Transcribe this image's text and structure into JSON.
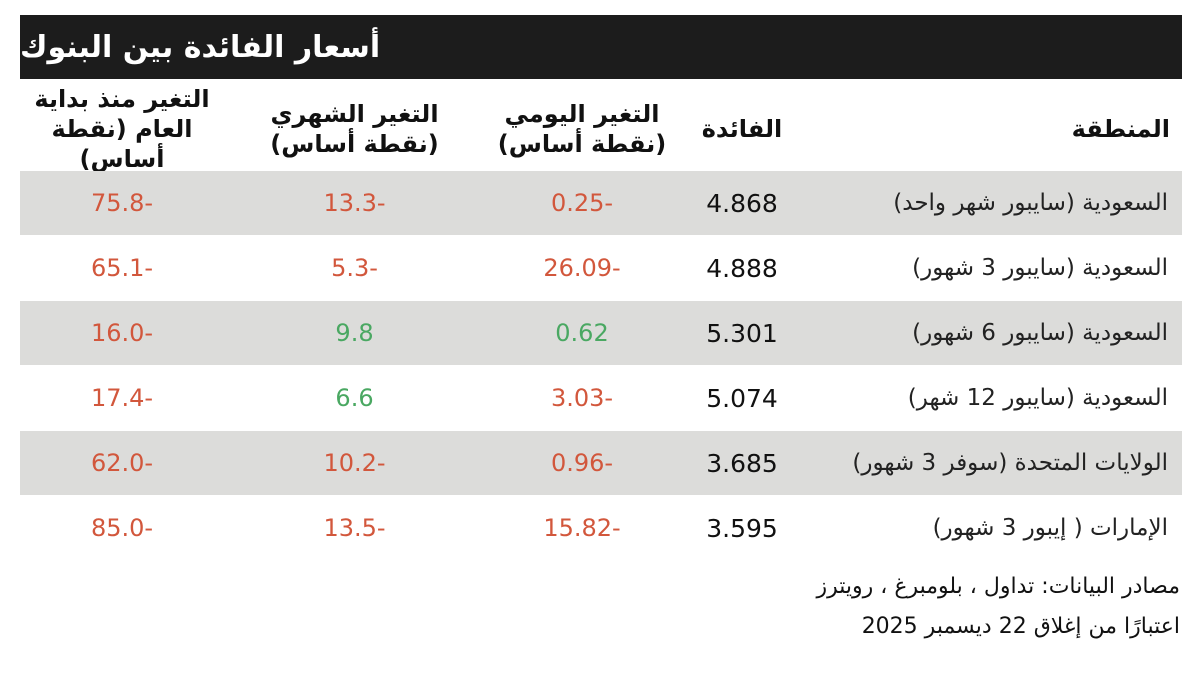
{
  "title": "أسعار الفائدة بين البنوك",
  "headers": {
    "region": "المنطقة",
    "rate": "الفائدة",
    "daily": "التغير اليومي\n(نقطة أساس)",
    "monthly": "التغير الشهري\n(نقطة أساس)",
    "ytd": "التغير منذ بداية\nالعام (نقطة أساس)"
  },
  "rows": [
    {
      "region": "السعودية (سايبور شهر واحد)",
      "rate": "4.868",
      "daily": "-0.25",
      "monthly": "-13.3",
      "ytd": "-75.8"
    },
    {
      "region": "السعودية (سايبور 3 شهور)",
      "rate": "4.888",
      "daily": "-26.09",
      "monthly": "-5.3",
      "ytd": "-65.1"
    },
    {
      "region": "السعودية (سايبور 6 شهور)",
      "rate": "5.301",
      "daily": "0.62",
      "monthly": "9.8",
      "ytd": "-16.0"
    },
    {
      "region": "السعودية (سايبور 12 شهر)",
      "rate": "5.074",
      "daily": "-3.03",
      "monthly": "6.6",
      "ytd": "-17.4"
    },
    {
      "region": "الولايات المتحدة (سوفر 3 شهور)",
      "rate": "3.685",
      "daily": "-0.96",
      "monthly": "-10.2",
      "ytd": "-62.0"
    },
    {
      "region": "الإمارات ( إيبور 3 شهور)",
      "rate": "3.595",
      "daily": "-15.82",
      "monthly": "-13.5",
      "ytd": "-85.0"
    }
  ],
  "footer": {
    "sources": "مصادر البيانات: تداول ، بلومبرغ ، رويترز",
    "as_of": "اعتبارًا من إغلاق 22 ديسمبر 2025"
  },
  "colors": {
    "title_bg": "#1c1c1c",
    "row_shade": "#dcdcda",
    "negative": "#d2573c",
    "positive": "#4aa862"
  }
}
